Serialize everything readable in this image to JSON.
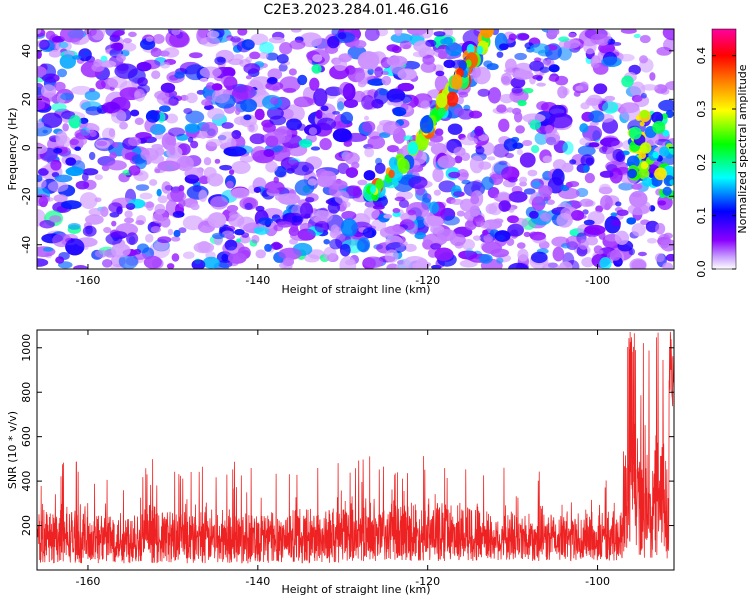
{
  "title": "C2E3.2023.284.01.46.G16",
  "chart_data": [
    {
      "type": "heatmap",
      "xlabel": "Height of straight line (km)",
      "ylabel": "Frequency (Hz)",
      "xlim": [
        -166,
        -91
      ],
      "ylim": [
        -50,
        49
      ],
      "x_ticks": [
        -160,
        -140,
        -120,
        -100
      ],
      "y_ticks": [
        -40,
        -20,
        0,
        20,
        40
      ],
      "colorbar": {
        "label": "Normalized spectral amplitude",
        "range": [
          0,
          0.45
        ],
        "ticks": [
          "0.0",
          "0.1",
          "0.2",
          "0.3",
          "0.4"
        ],
        "tick_values": [
          0,
          0.1,
          0.2,
          0.3,
          0.4
        ]
      },
      "colormap": [
        "#ffffff",
        "#8a00ff",
        "#0000ff",
        "#00ffff",
        "#00ff00",
        "#ffff00",
        "#ff8000",
        "#ff0000",
        "#ff00a0"
      ],
      "features": {
        "diagonal_ridge": {
          "x": [
            -127,
            -121,
            -117,
            -113
          ],
          "y": [
            -20,
            2,
            25,
            48
          ],
          "amplitude": 0.35
        },
        "bright_cluster": {
          "x_range": [
            -96,
            -91
          ],
          "y_range": [
            -20,
            15
          ],
          "amplitude": 0.3
        }
      },
      "background_amplitude_range": [
        0.02,
        0.15
      ]
    },
    {
      "type": "line",
      "xlabel": "Height of straight line (km)",
      "ylabel": "SNR (10 * v/v)",
      "xlim": [
        -166,
        -91
      ],
      "ylim": [
        0,
        1080
      ],
      "x_ticks": [
        -160,
        -140,
        -120,
        -100
      ],
      "y_ticks": [
        200,
        400,
        600,
        800,
        1000
      ],
      "color": "#ee2222",
      "baseline_mean": 150,
      "segments": [
        {
          "x": [
            -166,
            -130
          ],
          "low": 30,
          "high": 320,
          "max_spike": 500
        },
        {
          "x": [
            -130,
            -113
          ],
          "low": 40,
          "high": 350,
          "max_spike": 530
        },
        {
          "x": [
            -113,
            -97
          ],
          "low": 40,
          "high": 300,
          "max_spike": 470
        },
        {
          "x": [
            -97,
            -91
          ],
          "low": 50,
          "high": 700,
          "max_spike": 1080
        }
      ]
    }
  ]
}
